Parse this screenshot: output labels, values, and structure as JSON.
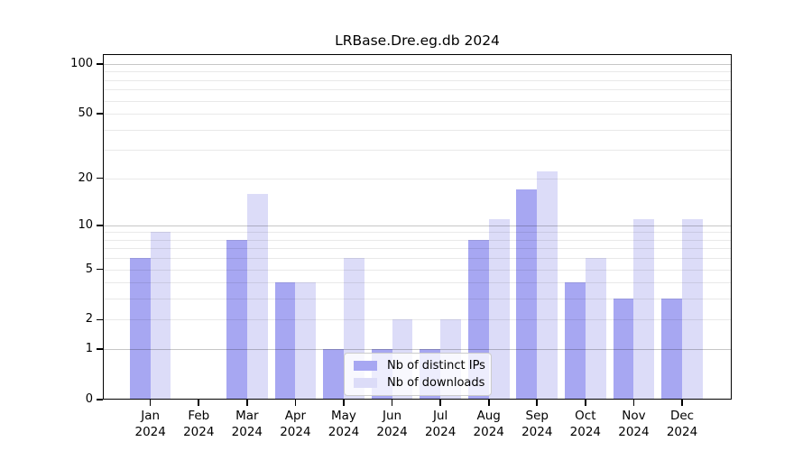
{
  "chart_data": {
    "type": "bar",
    "title": "LRBase.Dre.eg.db 2024",
    "categories": [
      "Jan",
      "Feb",
      "Mar",
      "Apr",
      "May",
      "Jun",
      "Jul",
      "Aug",
      "Sep",
      "Oct",
      "Nov",
      "Dec"
    ],
    "x_tick_year": "2024",
    "series": [
      {
        "name": "Nb of distinct IPs",
        "color": "#a7a7f2",
        "values": [
          6,
          0,
          8,
          4,
          1,
          1,
          1,
          8,
          17,
          4,
          3,
          3
        ]
      },
      {
        "name": "Nb of downloads",
        "color": "#dcdcf8",
        "values": [
          9,
          0,
          16,
          4,
          6,
          2,
          2,
          11,
          22,
          6,
          11,
          11
        ]
      }
    ],
    "yscale": "log1p",
    "ylim": [
      0,
      100
    ],
    "y_ticks": [
      0,
      1,
      2,
      5,
      10,
      20,
      50,
      100
    ],
    "grid": {
      "major_values": [
        1,
        10,
        100
      ],
      "minor_values": [
        2,
        3,
        4,
        5,
        6,
        7,
        8,
        9,
        20,
        30,
        40,
        50,
        60,
        70,
        80,
        90
      ],
      "major_color": "rgba(0,0,0,0.22)",
      "minor_color": "rgba(0,0,0,0.085)"
    },
    "legend": {
      "position": "lower-center",
      "items": [
        "Nb of distinct IPs",
        "Nb of downloads"
      ]
    }
  }
}
